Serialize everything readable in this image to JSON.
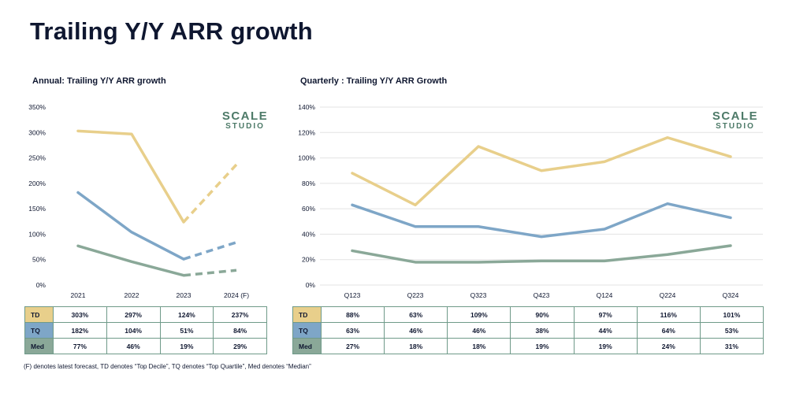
{
  "title": "Trailing Y/Y ARR growth",
  "footnote": "(F) denotes latest forecast, TD denotes “Top Decile”, TQ denotes “Top Quartile”, Med denotes “Median”",
  "logo": {
    "line1": "SCALE",
    "line2": "STUDIO"
  },
  "colors": {
    "TD": "#e8cf8b",
    "TQ": "#7ea6c7",
    "Med": "#8aa898",
    "grid": "#e3e3e3",
    "table_border": "#6f9a89"
  },
  "chart_data": [
    {
      "type": "line",
      "title": "Annual: Trailing Y/Y ARR growth",
      "categories": [
        "2021",
        "2022",
        "2023",
        "2024 (F)"
      ],
      "ylim": [
        0,
        350
      ],
      "yticks": [
        "0%",
        "50%",
        "100%",
        "150%",
        "200%",
        "250%",
        "300%",
        "350%"
      ],
      "grid": false,
      "forecast_from_index": 2,
      "series": [
        {
          "name": "TD",
          "values": [
            303,
            297,
            124,
            237
          ],
          "labels": [
            "303%",
            "297%",
            "124%",
            "237%"
          ]
        },
        {
          "name": "TQ",
          "values": [
            182,
            104,
            51,
            84
          ],
          "labels": [
            "182%",
            "104%",
            "51%",
            "84%"
          ]
        },
        {
          "name": "Med",
          "values": [
            77,
            46,
            19,
            29
          ],
          "labels": [
            "77%",
            "46%",
            "19%",
            "29%"
          ]
        }
      ]
    },
    {
      "type": "line",
      "title": "Quarterly : Trailing Y/Y ARR Growth",
      "categories": [
        "Q123",
        "Q223",
        "Q323",
        "Q423",
        "Q124",
        "Q224",
        "Q324"
      ],
      "ylim": [
        0,
        140
      ],
      "yticks": [
        "0%",
        "20%",
        "40%",
        "60%",
        "80%",
        "100%",
        "120%",
        "140%"
      ],
      "grid": true,
      "series": [
        {
          "name": "TD",
          "values": [
            88,
            63,
            109,
            90,
            97,
            116,
            101
          ],
          "labels": [
            "88%",
            "63%",
            "109%",
            "90%",
            "97%",
            "116%",
            "101%"
          ]
        },
        {
          "name": "TQ",
          "values": [
            63,
            46,
            46,
            38,
            44,
            64,
            53
          ],
          "labels": [
            "63%",
            "46%",
            "46%",
            "38%",
            "44%",
            "64%",
            "53%"
          ]
        },
        {
          "name": "Med",
          "values": [
            27,
            18,
            18,
            19,
            19,
            24,
            31
          ],
          "labels": [
            "27%",
            "18%",
            "18%",
            "19%",
            "19%",
            "24%",
            "31%"
          ]
        }
      ]
    }
  ]
}
